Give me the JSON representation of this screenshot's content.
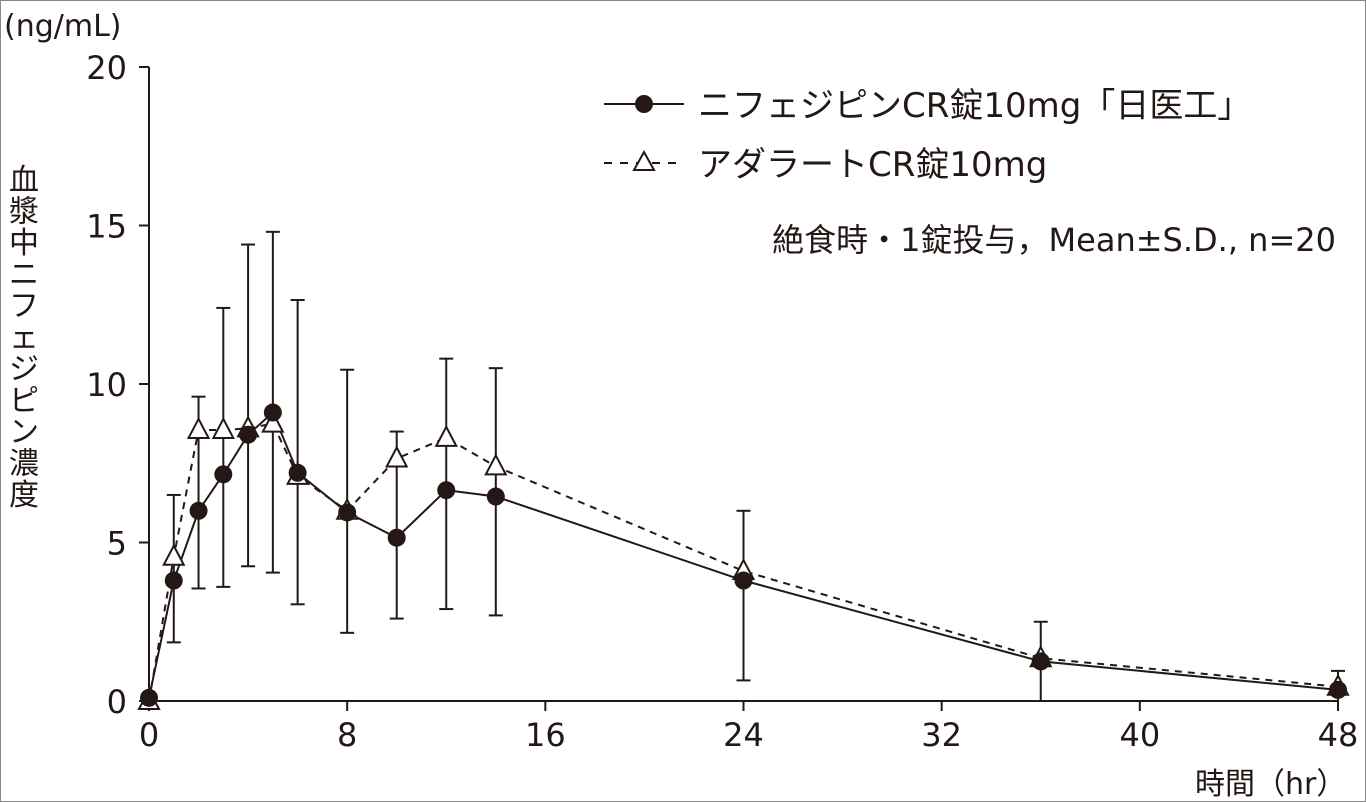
{
  "chart_data": {
    "type": "line",
    "ylabel": "血漿中ニフェジピン濃度",
    "yunit": "(ng/mL)",
    "xlabel": "時間（hr）",
    "xlim": [
      0,
      48
    ],
    "ylim": [
      0,
      20
    ],
    "xticks": [
      0,
      8,
      16,
      24,
      32,
      40,
      48
    ],
    "yticks": [
      0,
      5,
      10,
      15,
      20
    ],
    "grid": false,
    "legend_position": "top-right",
    "annotation": "絶食時・1錠投与，Mean±S.D., n=20",
    "x": [
      0,
      1,
      2,
      3,
      4,
      5,
      6,
      8,
      10,
      12,
      14,
      24,
      36,
      48
    ],
    "series": [
      {
        "name": "ニフェジピンCR錠10mg「日医工」",
        "style": "solid",
        "marker": "filled-circle",
        "values": [
          0.1,
          3.8,
          6.0,
          7.15,
          8.4,
          9.1,
          7.2,
          5.95,
          5.15,
          6.65,
          6.45,
          3.8,
          1.25,
          0.35
        ]
      },
      {
        "name": "アダラートCR錠10mg",
        "style": "dashed",
        "marker": "open-triangle",
        "values": [
          0.0,
          4.55,
          8.55,
          8.55,
          8.6,
          8.75,
          7.1,
          6.0,
          7.65,
          8.3,
          7.4,
          4.1,
          1.35,
          0.45
        ]
      }
    ],
    "error_bars": {
      "x": [
        1,
        2,
        3,
        4,
        5,
        6,
        8,
        10,
        12,
        14,
        24,
        36,
        48
      ],
      "upper": [
        6.5,
        9.6,
        12.4,
        14.4,
        14.8,
        12.65,
        10.45,
        8.5,
        10.8,
        10.5,
        6.0,
        2.5,
        0.95
      ],
      "lower": [
        1.85,
        3.55,
        3.6,
        4.25,
        4.05,
        3.05,
        2.15,
        2.6,
        2.9,
        2.7,
        0.65,
        0.0,
        0.0
      ]
    }
  }
}
